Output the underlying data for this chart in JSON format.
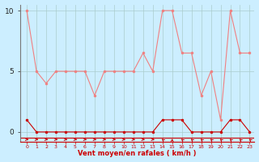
{
  "x": [
    0,
    1,
    2,
    3,
    4,
    5,
    6,
    7,
    8,
    9,
    10,
    11,
    12,
    13,
    14,
    15,
    16,
    17,
    18,
    19,
    20,
    21,
    22,
    23
  ],
  "rafales": [
    10,
    5,
    4,
    5,
    5,
    5,
    5,
    3,
    5,
    5,
    5,
    5,
    6.5,
    5,
    10,
    10,
    6.5,
    6.5,
    3,
    5,
    1,
    10,
    6.5,
    6.5
  ],
  "vent_moyen": [
    1,
    0,
    0,
    0,
    0,
    0,
    0,
    0,
    0,
    0,
    0,
    0,
    0,
    0,
    1,
    1,
    1,
    0,
    0,
    0,
    0,
    1,
    1,
    0
  ],
  "bg_color": "#cceeff",
  "grid_color": "#aacccc",
  "line_color_rafales": "#f08080",
  "line_color_vent": "#cc0000",
  "xlabel": "Vent moyen/en rafales ( km/h )",
  "ylim": [
    -0.8,
    10.5
  ],
  "yticks": [
    0,
    5,
    10
  ],
  "arrow_directions": [
    0,
    0,
    0,
    0,
    0,
    0,
    0,
    0,
    0,
    0,
    0,
    0,
    0,
    0,
    135,
    90,
    135,
    135,
    135,
    135,
    135,
    135,
    135,
    135
  ]
}
